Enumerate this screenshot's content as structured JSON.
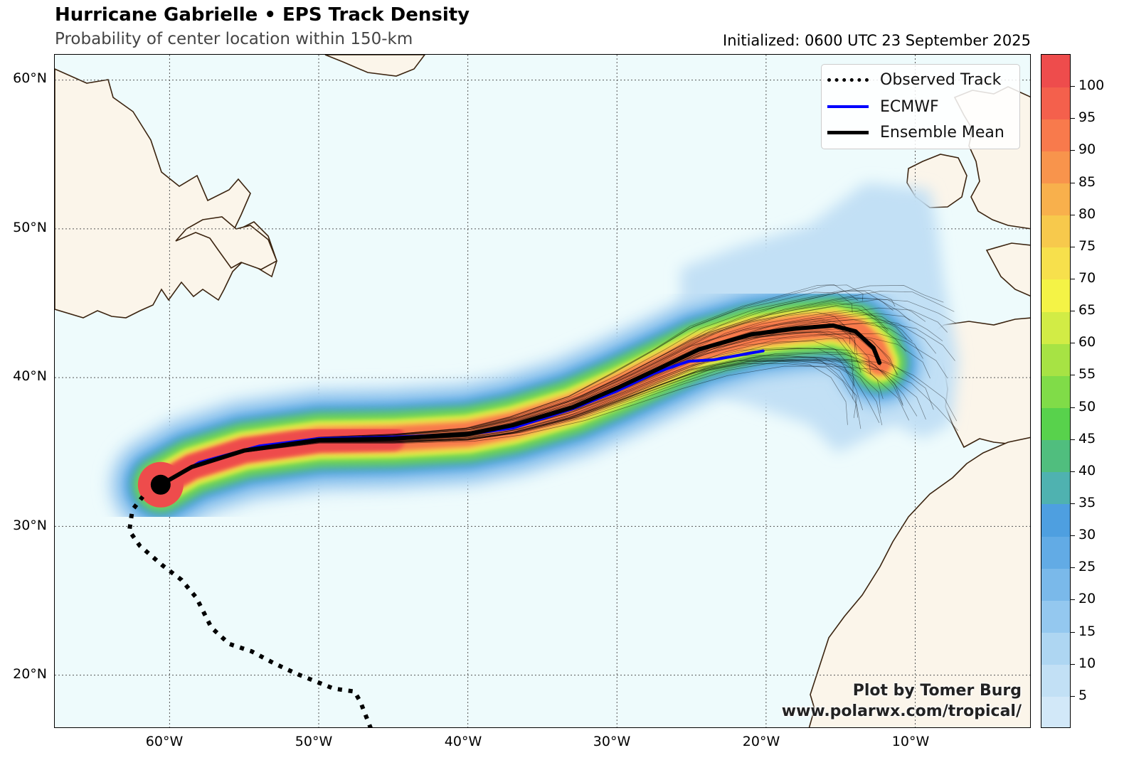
{
  "title": "Hurricane Gabrielle • EPS Track Density",
  "subtitle": "Probability of center location within 150-km",
  "initialized": "Initialized: 0600 UTC 23 September 2025",
  "credit": {
    "line1": "Plot by Tomer Burg",
    "line2": "www.polarwx.com/tropical/"
  },
  "legend": [
    {
      "label": "Observed Track",
      "style": "dotted",
      "color": "#000000"
    },
    {
      "label": "ECMWF",
      "style": "solid",
      "color": "#0000ff"
    },
    {
      "label": "Ensemble Mean",
      "style": "solid",
      "color": "#000000"
    }
  ],
  "lat_labels": [
    "60°N",
    "50°N",
    "40°N",
    "30°N",
    "20°N"
  ],
  "lon_labels": [
    "60°W",
    "50°W",
    "40°W",
    "30°W",
    "20°W",
    "10°W"
  ],
  "colorbar": {
    "tick_labels": [
      "5",
      "10",
      "15",
      "20",
      "25",
      "30",
      "35",
      "40",
      "45",
      "50",
      "55",
      "60",
      "65",
      "70",
      "75",
      "80",
      "85",
      "90",
      "95",
      "100"
    ],
    "colors": [
      "#d2e8f8",
      "#c2e0f5",
      "#aed6f2",
      "#94c8ef",
      "#7ab9ea",
      "#62abe5",
      "#4e9fe0",
      "#4fb2b0",
      "#50be7e",
      "#58d24c",
      "#80dc48",
      "#a7e344",
      "#d2ec45",
      "#f4f346",
      "#f7e04c",
      "#f7c94c",
      "#f8b04c",
      "#f8944c",
      "#f87a4c",
      "#f4604c",
      "#ee4c4c"
    ]
  },
  "colors": {
    "ocean": "#eefbfc",
    "land": "#fbf5ea",
    "coast": "#3b2410",
    "observed": "#000000",
    "ecmwf": "#0000ff",
    "mean": "#000000"
  },
  "map_data": {
    "projection": "equirectangular",
    "lon_range": [
      -67.7,
      -2.2
    ],
    "lat_range": [
      16.4,
      61.7
    ],
    "current_position": {
      "lon": -60.6,
      "lat": 32.8
    },
    "observed_track": [
      [
        -46.5,
        16.4
      ],
      [
        -47.2,
        18.2
      ],
      [
        -47.6,
        18.9
      ],
      [
        -49.0,
        19.1
      ],
      [
        -51.5,
        20.1
      ],
      [
        -53.0,
        20.8
      ],
      [
        -54.5,
        21.6
      ],
      [
        -56.0,
        22.1
      ],
      [
        -57.2,
        23.2
      ],
      [
        -58.2,
        25.2
      ],
      [
        -59.2,
        26.4
      ],
      [
        -60.5,
        27.4
      ],
      [
        -62.0,
        28.7
      ],
      [
        -62.7,
        29.7
      ],
      [
        -62.5,
        31.1
      ],
      [
        -61.8,
        32.0
      ]
    ],
    "ensemble_mean_track": [
      [
        -60.6,
        32.8
      ],
      [
        -58.5,
        34.0
      ],
      [
        -55.0,
        35.1
      ],
      [
        -50.0,
        35.8
      ],
      [
        -45.0,
        35.9
      ],
      [
        -40.0,
        36.2
      ],
      [
        -37.0,
        36.8
      ],
      [
        -33.0,
        38.0
      ],
      [
        -30.0,
        39.3
      ],
      [
        -27.0,
        40.7
      ],
      [
        -24.5,
        41.9
      ],
      [
        -21.0,
        42.9
      ],
      [
        -18.0,
        43.3
      ],
      [
        -15.5,
        43.5
      ],
      [
        -14.0,
        43.1
      ],
      [
        -12.8,
        42.0
      ],
      [
        -12.4,
        41.0
      ]
    ],
    "ecmwf_track": [
      [
        -60.6,
        32.8
      ],
      [
        -58.0,
        34.3
      ],
      [
        -54.0,
        35.4
      ],
      [
        -50.0,
        35.9
      ],
      [
        -45.0,
        36.0
      ],
      [
        -40.0,
        36.2
      ],
      [
        -37.0,
        36.6
      ],
      [
        -33.0,
        37.9
      ],
      [
        -30.0,
        39.1
      ],
      [
        -27.5,
        40.3
      ],
      [
        -25.2,
        41.1
      ],
      [
        -23.5,
        41.2
      ],
      [
        -20.2,
        41.8
      ]
    ],
    "density_levels_percent": [
      5,
      10,
      15,
      20,
      25,
      30,
      35,
      40,
      45,
      50,
      55,
      60,
      65,
      70,
      75,
      80,
      85,
      90,
      95,
      100
    ]
  }
}
